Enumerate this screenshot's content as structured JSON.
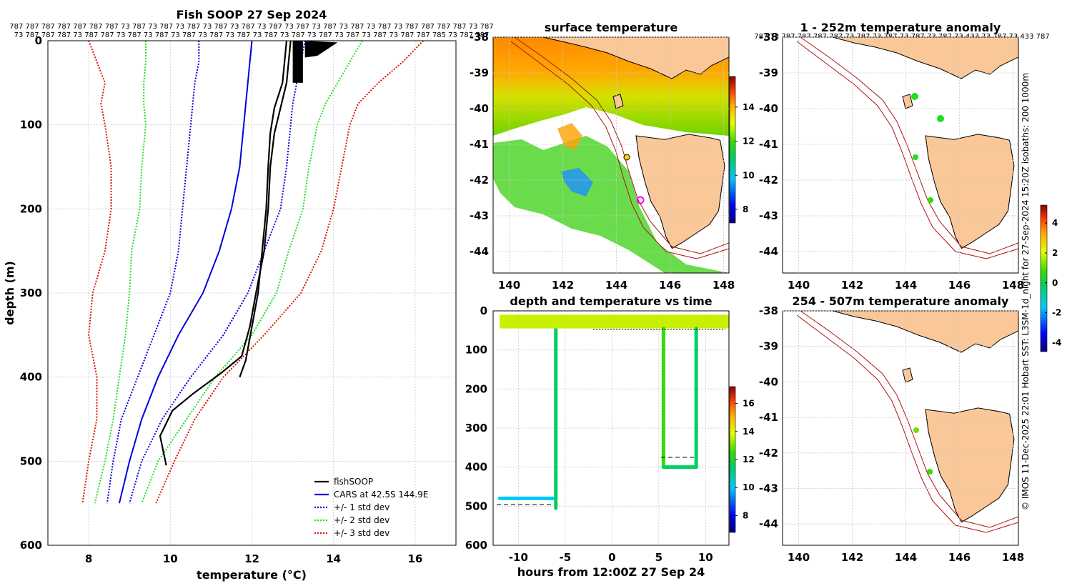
{
  "chart_data": [
    {
      "type": "line",
      "title": "Fish SOOP 27 Sep 2024",
      "xlabel": "temperature (°C)",
      "ylabel": "depth (m)",
      "xlim": [
        7,
        17
      ],
      "ylim": [
        600,
        0
      ],
      "xticks": [
        "8",
        "10",
        "12",
        "14",
        "16"
      ],
      "yticks": [
        "0",
        "100",
        "200",
        "300",
        "400",
        "500",
        "600"
      ],
      "header_row1": "787 787 787 787 787 787 787 73 787 73 787 73 787 73 787 73 787 73 787 73 787 73 787 73 787 73 787 73 787 787 787 787 73 787",
      "header_row2": "73 787 787 787 73 787 787 73 787 73 787 73 787 73 787 73 787 73 787 73 787 73 787 73 787 73 787 73 787 787 785 73 787 787",
      "legend": [
        "fishSOOP",
        "CARS at 42.5S 144.9E",
        "+/- 1 std dev",
        "+/- 2 std dev",
        "+/- 3 std dev"
      ],
      "legend_colors": [
        "#000000",
        "#0000dd",
        "#0000dd",
        "#22dd22",
        "#dd1100"
      ],
      "depth": [
        0,
        25,
        50,
        75,
        100,
        150,
        200,
        250,
        300,
        350,
        400,
        450,
        500,
        550
      ],
      "cars_mean": [
        12.0,
        11.95,
        11.9,
        11.85,
        11.8,
        11.7,
        11.5,
        11.2,
        10.8,
        10.2,
        9.7,
        9.3,
        9.0,
        8.75
      ],
      "std1_lower": [
        10.7,
        10.7,
        10.6,
        10.55,
        10.5,
        10.4,
        10.3,
        10.2,
        10.0,
        9.6,
        9.2,
        8.8,
        8.6,
        8.45
      ],
      "std1_upper": [
        13.3,
        13.2,
        13.1,
        13.0,
        12.95,
        12.85,
        12.7,
        12.3,
        11.9,
        11.3,
        10.5,
        9.8,
        9.3,
        9.0
      ],
      "std2_lower": [
        9.4,
        9.4,
        9.35,
        9.35,
        9.4,
        9.3,
        9.25,
        9.05,
        9.0,
        8.9,
        8.75,
        8.6,
        8.4,
        8.15
      ],
      "std2_upper": [
        14.7,
        14.4,
        14.1,
        13.8,
        13.6,
        13.4,
        13.25,
        12.9,
        12.6,
        12.0,
        11.1,
        10.4,
        9.7,
        9.3
      ],
      "std3_lower": [
        8.0,
        8.2,
        8.4,
        8.3,
        8.4,
        8.55,
        8.55,
        8.4,
        8.1,
        8.0,
        8.2,
        8.2,
        8.0,
        7.85
      ],
      "std3_upper": [
        16.2,
        15.7,
        15.1,
        14.6,
        14.4,
        14.2,
        14.0,
        13.7,
        13.2,
        12.3,
        11.3,
        10.6,
        10.1,
        9.65
      ],
      "fishsoop": {
        "cast_a": {
          "temp": [
            12.85,
            12.75,
            12.55,
            12.45,
            12.4,
            12.35,
            12.25,
            12.15,
            12.0,
            11.85,
            11.7
          ],
          "depth": [
            0,
            50,
            80,
            110,
            150,
            200,
            250,
            300,
            340,
            380,
            400
          ]
        },
        "cast_b": {
          "temp": [
            12.95,
            12.85,
            12.7,
            12.55,
            12.45,
            12.4,
            12.3,
            12.1,
            11.95,
            11.75,
            11.25,
            10.55,
            10.05,
            9.75,
            9.9
          ],
          "depth": [
            0,
            50,
            80,
            110,
            150,
            200,
            250,
            300,
            340,
            375,
            395,
            420,
            440,
            470,
            505
          ]
        }
      }
    },
    {
      "type": "map",
      "title": "surface temperature",
      "xticks": [
        "140",
        "142",
        "144",
        "146",
        "148"
      ],
      "yticks": [
        "-38",
        "-39",
        "-40",
        "-41",
        "-42",
        "-43",
        "-44"
      ],
      "colorbar_ticks": [
        "8",
        "10",
        "12",
        "14"
      ]
    },
    {
      "type": "scatter",
      "title": "depth and temperature vs time",
      "xlabel": "hours from 12:00Z 27 Sep 24",
      "xticks": [
        "-10",
        "-5",
        "0",
        "5",
        "10"
      ],
      "yticks": [
        "0",
        "100",
        "200",
        "300",
        "400",
        "500",
        "600"
      ],
      "colorbar_ticks": [
        "8",
        "10",
        "12",
        "14",
        "16"
      ],
      "segments": [
        {
          "hours": [
            -12.0,
            -6.0
          ],
          "depth": [
            480,
            480
          ],
          "temp": 10.3
        },
        {
          "hours": [
            -6.0,
            -6.0
          ],
          "depth": [
            20,
            505
          ],
          "temp": 12.4
        },
        {
          "hours": [
            -12.0,
            12.5
          ],
          "depth": [
            10,
            45
          ],
          "temp": 13.3
        },
        {
          "hours": [
            5.5,
            5.5
          ],
          "depth": [
            45,
            400
          ],
          "temp": 12.6
        },
        {
          "hours": [
            5.5,
            9.0
          ],
          "depth": [
            400,
            400
          ],
          "temp": 12.0
        },
        {
          "hours": [
            9.0,
            9.0
          ],
          "depth": [
            45,
            400
          ],
          "temp": 12.3
        }
      ]
    },
    {
      "type": "map",
      "title": "1 - 252m temperature anomaly",
      "header": "787 73 787 787 787 787 73 787 73 787 73 787 73 787 73 433 73 787 73 433 787",
      "xticks": [
        "140",
        "142",
        "144",
        "146",
        "148"
      ],
      "yticks": [
        "-38",
        "-39",
        "-40",
        "-41",
        "-42",
        "-43",
        "-44"
      ],
      "colorbar_ticks": [
        "4",
        "2",
        "0",
        "-2",
        "-4"
      ]
    },
    {
      "type": "map",
      "title": "254 - 507m temperature anomaly",
      "xticks": [
        "140",
        "142",
        "144",
        "146",
        "148"
      ],
      "yticks": [
        "-38",
        "-39",
        "-40",
        "-41",
        "-42",
        "-43",
        "-44"
      ]
    }
  ],
  "credit": "© IMOS 11-Dec-2025 22:01 Hobart SST: L3SM-1d_night for 27-Sep-2024 15:20Z isobaths: 200  1000m"
}
